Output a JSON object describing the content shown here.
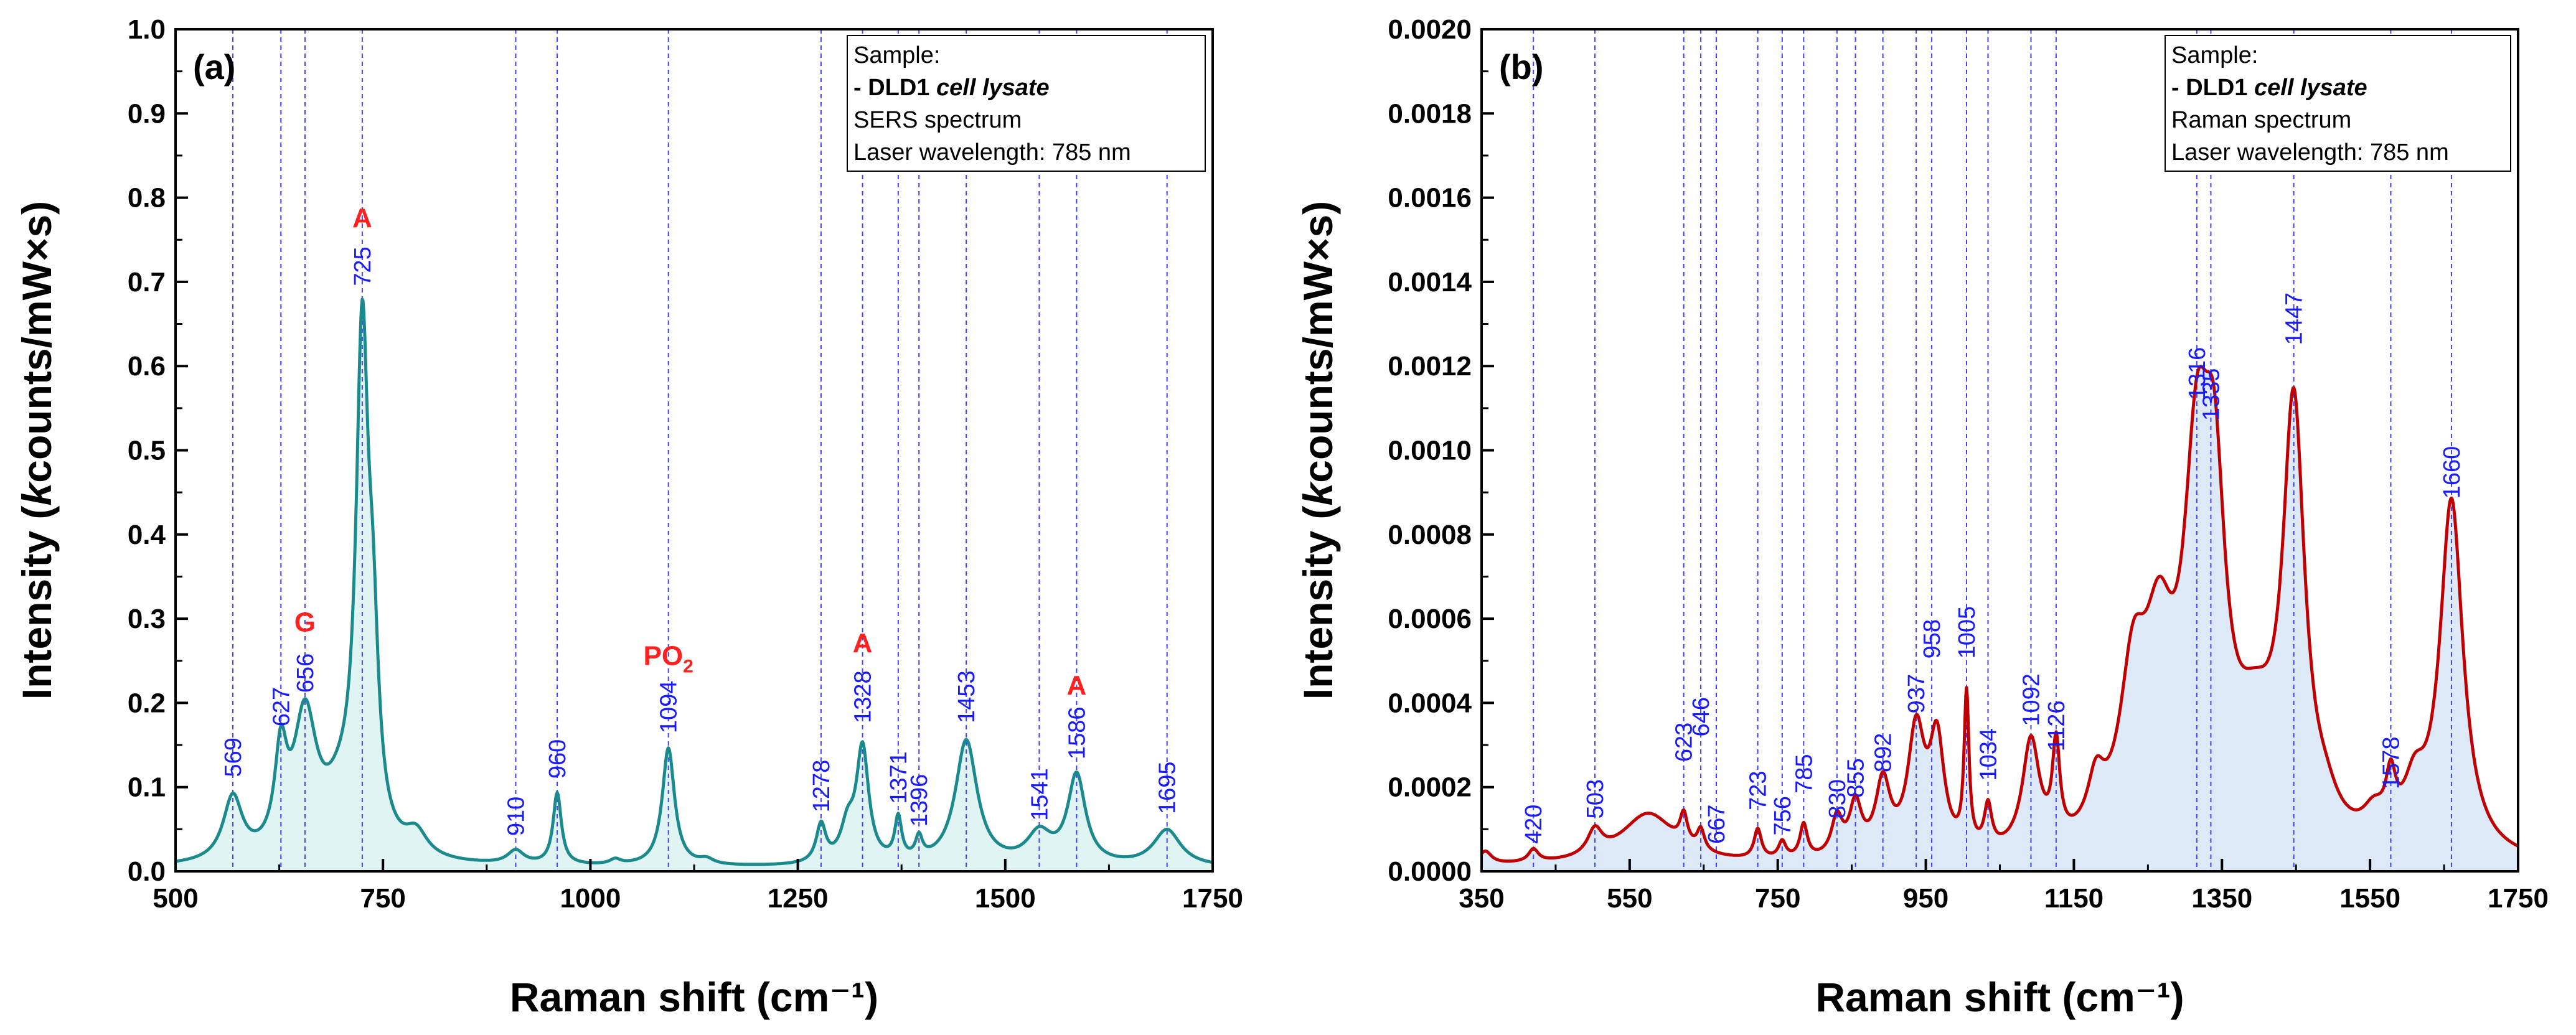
{
  "colors": {
    "sers_line": "#1b8a8c",
    "sers_fill": "#dff4f3",
    "raman_line": "#c00000",
    "raman_fill": "#dde9f7",
    "guide": "#4040ff",
    "peak_label": "#1a1aff",
    "assignment": "#ff2020",
    "sers_legend_sample": "#1b8a8c",
    "raman_legend_sample": "#cc0000"
  },
  "chart_data": [
    {
      "type": "line",
      "panel_label": "(a)",
      "xlabel": "Raman shift (cm⁻¹)",
      "ylabel_parts": [
        "Intensity (",
        "k",
        "counts/mW×s)"
      ],
      "xlim": [
        500,
        1750
      ],
      "ylim": [
        0,
        1.0
      ],
      "x_ticks": [
        "500",
        "750",
        "1000",
        "1250",
        "1500",
        "1750"
      ],
      "y_ticks": [
        "0.0",
        "0.1",
        "0.2",
        "0.3",
        "0.4",
        "0.5",
        "0.6",
        "0.7",
        "0.8",
        "0.9",
        "1.0"
      ],
      "legend": {
        "line1": "Sample:",
        "line2_prefix": "- DLD1 ",
        "line2_italic": "cell lysate",
        "line3": "SERS spectrum",
        "line4": "Laser wavelength: 785 nm"
      },
      "peak_labels": [
        "569",
        "627",
        "656",
        "725",
        "910",
        "960",
        "1094",
        "1278",
        "1328",
        "1371",
        "1396",
        "1453",
        "1541",
        "1586",
        "1695"
      ],
      "peaks": [
        {
          "x": 569,
          "y": 0.085,
          "label_y": 0.112
        },
        {
          "x": 627,
          "y": 0.145,
          "label_y": 0.172
        },
        {
          "x": 656,
          "y": 0.188,
          "label_y": 0.212
        },
        {
          "x": 725,
          "y": 0.67,
          "label_y": 0.695
        },
        {
          "x": 910,
          "y": 0.018,
          "label_y": 0.042
        },
        {
          "x": 960,
          "y": 0.088,
          "label_y": 0.11
        },
        {
          "x": 1094,
          "y": 0.142,
          "label_y": 0.164
        },
        {
          "x": 1278,
          "y": 0.048,
          "label_y": 0.07
        },
        {
          "x": 1328,
          "y": 0.153,
          "label_y": 0.176
        },
        {
          "x": 1371,
          "y": 0.055,
          "label_y": 0.08
        },
        {
          "x": 1396,
          "y": 0.03,
          "label_y": 0.053
        },
        {
          "x": 1453,
          "y": 0.152,
          "label_y": 0.176
        },
        {
          "x": 1541,
          "y": 0.038,
          "label_y": 0.06
        },
        {
          "x": 1586,
          "y": 0.11,
          "label_y": 0.133
        },
        {
          "x": 1695,
          "y": 0.045,
          "label_y": 0.068
        }
      ],
      "assignments": [
        {
          "label": "G",
          "sub": "",
          "x": 656,
          "y": 0.285
        },
        {
          "label": "A",
          "sub": "",
          "x": 725,
          "y": 0.765
        },
        {
          "label": "PO",
          "sub": "2",
          "x": 1094,
          "y": 0.245
        },
        {
          "label": "A",
          "sub": "",
          "x": 1328,
          "y": 0.26
        },
        {
          "label": "A",
          "sub": "",
          "x": 1586,
          "y": 0.21
        }
      ],
      "spectrum_components": [
        {
          "c": 569,
          "a": 0.075,
          "w": 14
        },
        {
          "c": 627,
          "a": 0.11,
          "w": 9
        },
        {
          "c": 656,
          "a": 0.16,
          "w": 17
        },
        {
          "c": 700,
          "a": 0.06,
          "w": 28
        },
        {
          "c": 725,
          "a": 0.58,
          "w": 9
        },
        {
          "c": 738,
          "a": 0.18,
          "w": 8
        },
        {
          "c": 790,
          "a": 0.028,
          "w": 16
        },
        {
          "c": 910,
          "a": 0.016,
          "w": 12
        },
        {
          "c": 960,
          "a": 0.085,
          "w": 6
        },
        {
          "c": 1030,
          "a": 0.006,
          "w": 8
        },
        {
          "c": 1094,
          "a": 0.14,
          "w": 9
        },
        {
          "c": 1140,
          "a": 0.006,
          "w": 10
        },
        {
          "c": 1278,
          "a": 0.045,
          "w": 7
        },
        {
          "c": 1310,
          "a": 0.04,
          "w": 10
        },
        {
          "c": 1328,
          "a": 0.135,
          "w": 9
        },
        {
          "c": 1371,
          "a": 0.05,
          "w": 5
        },
        {
          "c": 1396,
          "a": 0.025,
          "w": 5
        },
        {
          "c": 1453,
          "a": 0.148,
          "w": 16
        },
        {
          "c": 1541,
          "a": 0.035,
          "w": 18
        },
        {
          "c": 1586,
          "a": 0.105,
          "w": 13
        },
        {
          "c": 1695,
          "a": 0.043,
          "w": 20
        }
      ],
      "spectrum_baseline": 0.004
    },
    {
      "type": "line",
      "panel_label": "(b)",
      "xlabel": "Raman shift (cm⁻¹)",
      "ylabel_parts": [
        "Intensity (",
        "k",
        "counts/mW×s)"
      ],
      "xlim": [
        350,
        1750
      ],
      "ylim": [
        0,
        0.002
      ],
      "x_ticks": [
        "350",
        "550",
        "750",
        "950",
        "1150",
        "1350",
        "1550",
        "1750"
      ],
      "y_ticks": [
        "0.0000",
        "0.0002",
        "0.0004",
        "0.0006",
        "0.0008",
        "0.0010",
        "0.0012",
        "0.0014",
        "0.0016",
        "0.0018",
        "0.0020"
      ],
      "legend": {
        "line1": "Sample:",
        "line2_prefix": "- DLD1 ",
        "line2_italic": "cell lysate",
        "line3": "Raman spectrum",
        "line4": "Laser wavelength: 785 nm"
      },
      "peak_labels": [
        "420",
        "503",
        "623",
        "646",
        "667",
        "723",
        "756",
        "785",
        "830",
        "855",
        "892",
        "937",
        "958",
        "1005",
        "1034",
        "1092",
        "1126",
        "1316",
        "1335",
        "1447",
        "1578",
        "1660"
      ],
      "peaks": [
        {
          "x": 420,
          "y": 3e-05,
          "label_y": 6.5e-05
        },
        {
          "x": 503,
          "y": 7e-05,
          "label_y": 0.000125
        },
        {
          "x": 623,
          "y": 0.0001,
          "label_y": 0.00026
        },
        {
          "x": 646,
          "y": 8e-05,
          "label_y": 0.00032
        },
        {
          "x": 667,
          "y": 3e-05,
          "label_y": 6.5e-05
        },
        {
          "x": 723,
          "y": 9e-05,
          "label_y": 0.000145
        },
        {
          "x": 756,
          "y": 5e-05,
          "label_y": 8.5e-05
        },
        {
          "x": 785,
          "y": 9e-05,
          "label_y": 0.000185
        },
        {
          "x": 830,
          "y": 0.00011,
          "label_y": 0.000125
        },
        {
          "x": 855,
          "y": 0.00015,
          "label_y": 0.000175
        },
        {
          "x": 892,
          "y": 0.00021,
          "label_y": 0.000235
        },
        {
          "x": 937,
          "y": 0.00036,
          "label_y": 0.000375
        },
        {
          "x": 958,
          "y": 0.00033,
          "label_y": 0.000505
        },
        {
          "x": 1005,
          "y": 0.00048,
          "label_y": 0.000505
        },
        {
          "x": 1034,
          "y": 0.00014,
          "label_y": 0.000215
        },
        {
          "x": 1092,
          "y": 0.00028,
          "label_y": 0.000345
        },
        {
          "x": 1126,
          "y": 0.00025,
          "label_y": 0.000285
        },
        {
          "x": 1316,
          "y": 0.00108,
          "label_y": 0.00112
        },
        {
          "x": 1335,
          "y": 0.00104,
          "label_y": 0.00107
        },
        {
          "x": 1447,
          "y": 0.00123,
          "label_y": 0.00125
        },
        {
          "x": 1578,
          "y": 0.00017,
          "label_y": 0.000195
        },
        {
          "x": 1660,
          "y": 0.00086,
          "label_y": 0.000885
        }
      ],
      "assignments": [],
      "spectrum_components": [
        {
          "c": 355,
          "a": 3e-05,
          "w": 10
        },
        {
          "c": 420,
          "a": 3e-05,
          "w": 8
        },
        {
          "c": 503,
          "a": 6e-05,
          "w": 12
        },
        {
          "c": 575,
          "a": 0.00012,
          "w": 45
        },
        {
          "c": 623,
          "a": 7e-05,
          "w": 6
        },
        {
          "c": 646,
          "a": 5e-05,
          "w": 6
        },
        {
          "c": 723,
          "a": 7e-05,
          "w": 6
        },
        {
          "c": 756,
          "a": 4e-05,
          "w": 6
        },
        {
          "c": 785,
          "a": 8e-05,
          "w": 6
        },
        {
          "c": 830,
          "a": 9e-05,
          "w": 9
        },
        {
          "c": 855,
          "a": 0.00012,
          "w": 10
        },
        {
          "c": 892,
          "a": 0.00017,
          "w": 12
        },
        {
          "c": 937,
          "a": 0.00029,
          "w": 14
        },
        {
          "c": 965,
          "a": 0.00026,
          "w": 12
        },
        {
          "c": 1005,
          "a": 0.00036,
          "w": 4
        },
        {
          "c": 1034,
          "a": 0.0001,
          "w": 6
        },
        {
          "c": 1092,
          "a": 0.00026,
          "w": 14
        },
        {
          "c": 1126,
          "a": 0.00022,
          "w": 6
        },
        {
          "c": 1180,
          "a": 0.00012,
          "w": 14
        },
        {
          "c": 1230,
          "a": 0.00035,
          "w": 22
        },
        {
          "c": 1265,
          "a": 0.0004,
          "w": 25
        },
        {
          "c": 1316,
          "a": 0.00078,
          "w": 22
        },
        {
          "c": 1340,
          "a": 0.00062,
          "w": 18
        },
        {
          "c": 1395,
          "a": 0.00022,
          "w": 35
        },
        {
          "c": 1447,
          "a": 0.001,
          "w": 18
        },
        {
          "c": 1490,
          "a": 5e-05,
          "w": 20
        },
        {
          "c": 1555,
          "a": 6e-05,
          "w": 18
        },
        {
          "c": 1578,
          "a": 0.00012,
          "w": 8
        },
        {
          "c": 1610,
          "a": 0.00012,
          "w": 18
        },
        {
          "c": 1660,
          "a": 0.00084,
          "w": 19
        }
      ],
      "spectrum_baseline": 1e-05
    }
  ]
}
